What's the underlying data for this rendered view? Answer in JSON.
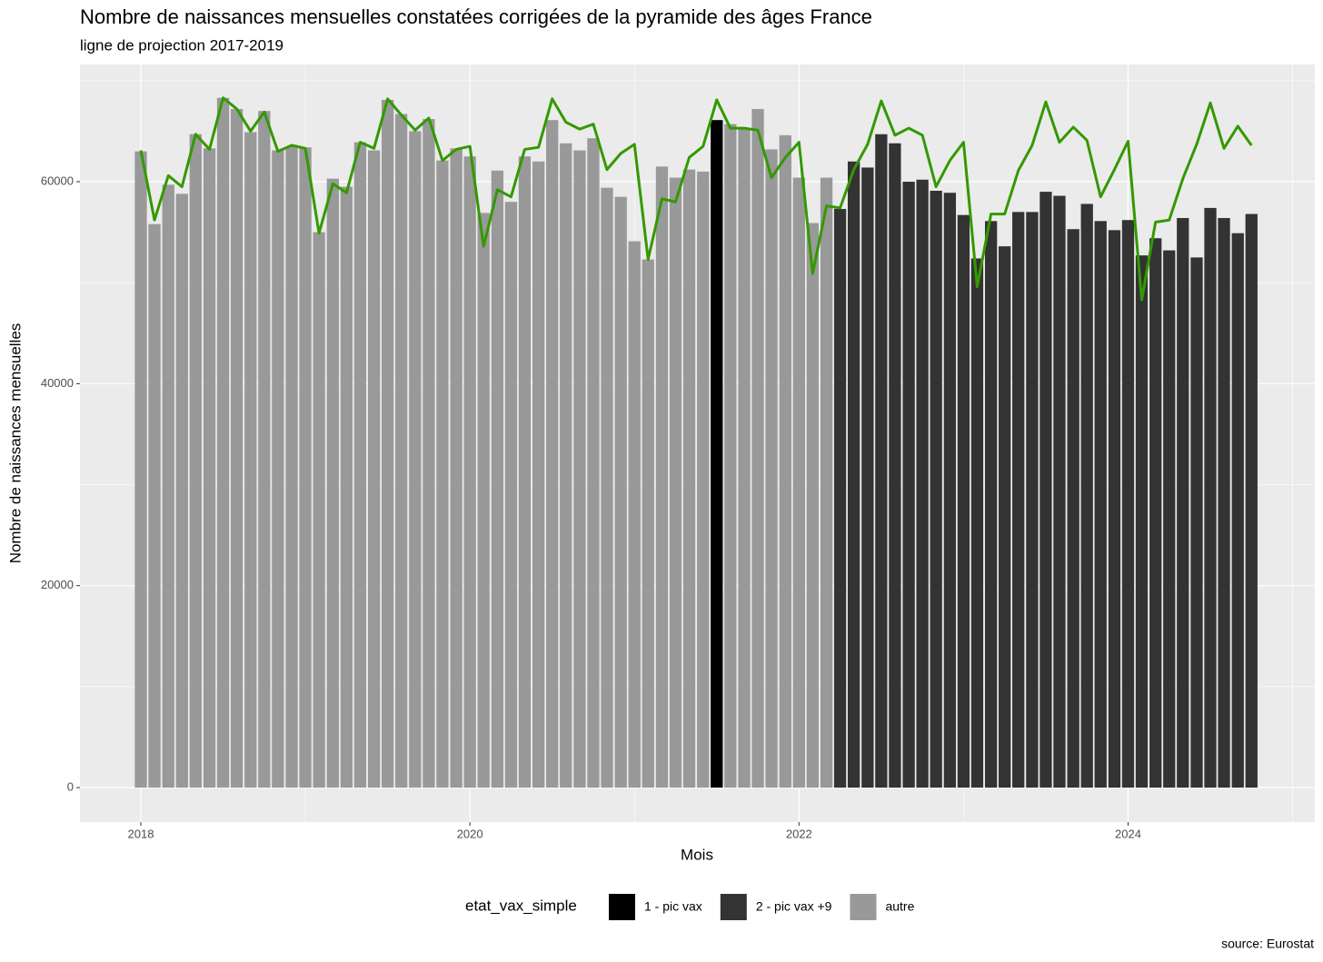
{
  "chart_data": {
    "type": "bar",
    "title": "Nombre de naissances mensuelles constatées corrigées de la pyramide des âges  France",
    "subtitle": "ligne de projection 2017-2019",
    "x_label": "Mois",
    "y_label": "Nombre de naissances mensuelles",
    "legend_title": "etat_vax_simple",
    "caption": "source: Eurostat",
    "x": [
      2018,
      2018.083,
      2018.167,
      2018.25,
      2018.333,
      2018.417,
      2018.5,
      2018.583,
      2018.667,
      2018.75,
      2018.833,
      2018.917,
      2019,
      2019.083,
      2019.167,
      2019.25,
      2019.333,
      2019.417,
      2019.5,
      2019.583,
      2019.667,
      2019.75,
      2019.833,
      2019.917,
      2020,
      2020.083,
      2020.167,
      2020.25,
      2020.333,
      2020.417,
      2020.5,
      2020.583,
      2020.667,
      2020.75,
      2020.833,
      2020.917,
      2021,
      2021.083,
      2021.167,
      2021.25,
      2021.333,
      2021.417,
      2021.5,
      2021.583,
      2021.667,
      2021.75,
      2021.833,
      2021.917,
      2022,
      2022.083,
      2022.167,
      2022.25,
      2022.333,
      2022.417,
      2022.5,
      2022.583,
      2022.667,
      2022.75,
      2022.833,
      2022.917,
      2023,
      2023.083,
      2023.167,
      2023.25,
      2023.333,
      2023.417,
      2023.5,
      2023.583,
      2023.667,
      2023.75,
      2023.833,
      2023.917,
      2024,
      2024.083,
      2024.167,
      2024.25,
      2024.333,
      2024.417,
      2024.5,
      2024.583,
      2024.667,
      2024.75
    ],
    "series": [
      {
        "name": "1 - pic vax",
        "color": "#000000",
        "values": [
          null,
          null,
          null,
          null,
          null,
          null,
          null,
          null,
          null,
          null,
          null,
          null,
          null,
          null,
          null,
          null,
          null,
          null,
          null,
          null,
          null,
          null,
          null,
          null,
          null,
          null,
          null,
          null,
          null,
          null,
          null,
          null,
          null,
          null,
          null,
          null,
          null,
          null,
          null,
          null,
          null,
          null,
          66100,
          null,
          null,
          null,
          null,
          null,
          null,
          null,
          null,
          null,
          null,
          null,
          null,
          null,
          null,
          null,
          null,
          null,
          null,
          null,
          null,
          null,
          null,
          null,
          null,
          null,
          null,
          null,
          null,
          null,
          null,
          null,
          null,
          null,
          null,
          null,
          null,
          null,
          null,
          null
        ]
      },
      {
        "name": "2 - pic vax +9",
        "color": "#333333",
        "values": [
          null,
          null,
          null,
          null,
          null,
          null,
          null,
          null,
          null,
          null,
          null,
          null,
          null,
          null,
          null,
          null,
          null,
          null,
          null,
          null,
          null,
          null,
          null,
          null,
          null,
          null,
          null,
          null,
          null,
          null,
          null,
          null,
          null,
          null,
          null,
          null,
          null,
          null,
          null,
          null,
          null,
          null,
          null,
          null,
          null,
          null,
          null,
          null,
          null,
          null,
          null,
          57300,
          62000,
          61400,
          64700,
          63800,
          60000,
          60200,
          59100,
          58900,
          56700,
          52400,
          56100,
          53600,
          57000,
          57000,
          59000,
          58600,
          55300,
          57800,
          56100,
          55200,
          56200,
          52700,
          54400,
          53200,
          56400,
          52500,
          57400,
          56400,
          54900,
          56800
        ]
      },
      {
        "name": "autre",
        "color": "#999999",
        "values": [
          63000,
          55800,
          59700,
          58800,
          64700,
          63300,
          68300,
          67200,
          64900,
          67000,
          63100,
          63500,
          63400,
          55000,
          60300,
          59500,
          63900,
          63100,
          68100,
          66700,
          65000,
          66200,
          62100,
          63300,
          62500,
          56900,
          61100,
          58000,
          62500,
          62000,
          66100,
          63800,
          63100,
          64300,
          59400,
          58500,
          54100,
          52300,
          61500,
          60400,
          61200,
          61000,
          null,
          65700,
          65200,
          67200,
          63200,
          64600,
          60400,
          55900,
          60400,
          null,
          null,
          null,
          null,
          null,
          null,
          null,
          null,
          null,
          null,
          null,
          null,
          null,
          null,
          null,
          null,
          null,
          null,
          null,
          null,
          null,
          null,
          null,
          null,
          null,
          null,
          null,
          null,
          null,
          null,
          null
        ]
      }
    ],
    "projection": {
      "color": "#339900",
      "values": [
        63100,
        56200,
        60600,
        59500,
        64700,
        63200,
        68300,
        67200,
        65000,
        66900,
        63000,
        63600,
        63300,
        54900,
        59800,
        58900,
        63900,
        63300,
        68200,
        66600,
        65100,
        66300,
        62100,
        63200,
        63500,
        53600,
        59200,
        58500,
        63200,
        63400,
        68200,
        65900,
        65200,
        65700,
        61200,
        62800,
        63700,
        52300,
        58300,
        58000,
        62400,
        63500,
        68100,
        65300,
        65300,
        65100,
        60400,
        62400,
        63900,
        50900,
        57600,
        57400,
        61200,
        63700,
        68000,
        64600,
        65300,
        64600,
        59500,
        62100,
        63900,
        49600,
        56800,
        56800,
        61100,
        63600,
        67900,
        63900,
        65400,
        64100,
        58500,
        61200,
        64000,
        48300,
        56000,
        56200,
        60300,
        63700,
        67800,
        63300,
        65500,
        63600
      ]
    },
    "xlim": [
      2017.63,
      2025.135
    ],
    "xticks": [
      2018,
      2020,
      2022,
      2024
    ],
    "x_minor_ticks": [
      2019,
      2021,
      2023,
      2025
    ],
    "ylim": [
      -3418,
      71604
    ],
    "yticks": [
      0,
      20000,
      40000,
      60000
    ],
    "y_minor_ticks": [
      10000,
      30000,
      50000,
      70000
    ],
    "grid": true
  }
}
